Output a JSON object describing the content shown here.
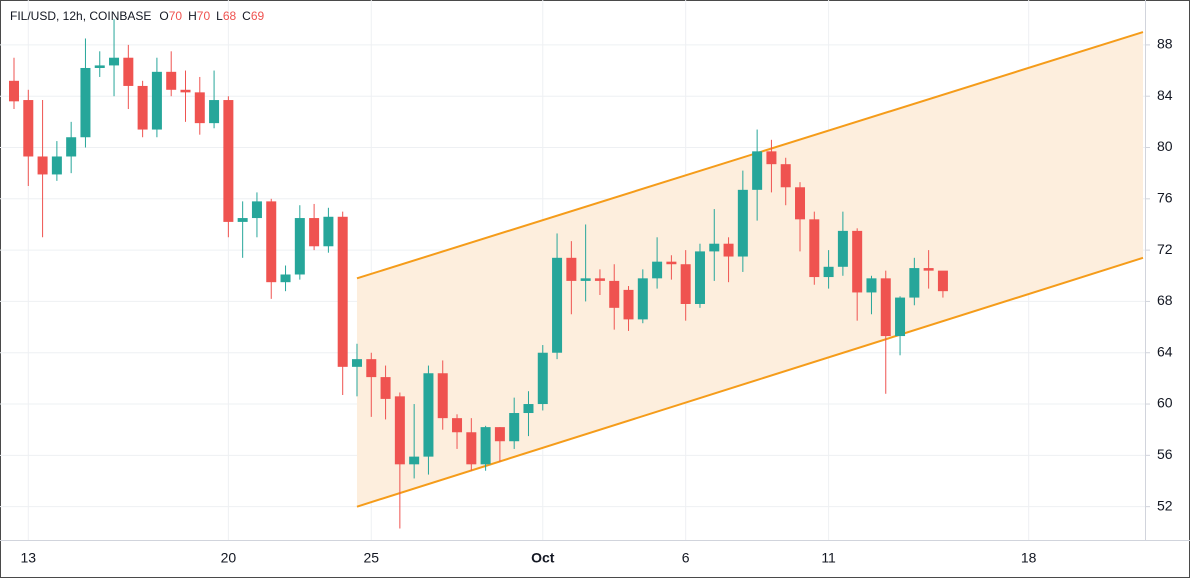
{
  "chart_data": {
    "type": "candlestick",
    "title": "FIL/USD, 12h, COINBASE",
    "ohlc_labels": [
      "O",
      "H",
      "L",
      "C"
    ],
    "ohlc_values": [
      70,
      70,
      68,
      69
    ],
    "categories": [
      null,
      "13",
      null,
      null,
      null,
      null,
      null,
      null,
      null,
      null,
      null,
      null,
      null,
      null,
      null,
      "20",
      null,
      null,
      null,
      null,
      null,
      null,
      null,
      null,
      null,
      "25",
      null,
      null,
      null,
      null,
      null,
      null,
      null,
      null,
      null,
      null,
      null,
      "Oct",
      null,
      null,
      null,
      null,
      null,
      null,
      null,
      null,
      null,
      "6",
      null,
      null,
      null,
      null,
      null,
      null,
      null,
      null,
      null,
      "11",
      null,
      null,
      null,
      null,
      null,
      null,
      null,
      null,
      null,
      null,
      null,
      null,
      null,
      "18",
      null,
      null,
      null,
      null,
      null,
      null,
      null,
      null
    ],
    "series": [
      {
        "name": "open",
        "values": [
          85.2,
          83.7,
          79.3,
          77.9,
          79.3,
          80.8,
          86.2,
          86.4,
          87,
          84.8,
          81.4,
          85.9,
          84.5,
          84.3,
          81.9,
          83.7,
          74.2,
          74.5,
          75.8,
          69.5,
          70.1,
          74.5,
          72.3,
          74.6,
          62.9,
          63.5,
          62.1,
          60.6,
          55.3,
          55.9,
          62.4,
          58.9,
          57.8,
          55.3,
          58.2,
          57.1,
          59.3,
          60,
          64,
          71.4,
          69.6,
          69.8,
          69.6,
          68.9,
          66.6,
          69.8,
          71.1,
          70.9,
          67.8,
          71.9,
          72.5,
          71.5,
          76.7,
          79.7,
          78.7,
          76.9,
          74.4,
          69.9,
          70.7,
          73.5,
          68.7,
          69.8,
          65.3,
          68.3,
          70.6,
          70.4,
          null,
          null,
          null,
          null,
          null,
          null,
          null,
          null,
          null,
          null,
          null,
          null,
          null,
          null
        ]
      },
      {
        "name": "high",
        "values": [
          87,
          84.5,
          83.7,
          80.5,
          82,
          88.5,
          87.5,
          90,
          88,
          85.2,
          87,
          87.5,
          86,
          85.5,
          86,
          84,
          75.8,
          76.5,
          76,
          70.8,
          75.5,
          75.6,
          75.3,
          75,
          64.7,
          64,
          63,
          60.9,
          60,
          63,
          63.4,
          59.2,
          58.9,
          58.3,
          58.2,
          60.5,
          61,
          64.6,
          73.3,
          72.7,
          74,
          70.5,
          70.9,
          69.2,
          70.5,
          73,
          71.6,
          72,
          72.5,
          75.2,
          73,
          78.2,
          81.4,
          80.6,
          79.2,
          77.3,
          75,
          72,
          75,
          73.7,
          70,
          70.4,
          68.4,
          71.4,
          72,
          70.3,
          null,
          null,
          null,
          null,
          null,
          null,
          null,
          null,
          null,
          null,
          null,
          null,
          null,
          null
        ]
      },
      {
        "name": "low",
        "values": [
          83,
          77,
          73,
          77.4,
          78,
          80,
          85.5,
          84,
          83,
          80.8,
          80.8,
          84,
          82,
          81,
          81.5,
          73,
          71.4,
          73,
          68.2,
          68.8,
          69.7,
          72,
          71.8,
          60.7,
          60.6,
          59,
          58.8,
          50.3,
          54.2,
          54.5,
          58,
          56.5,
          54.8,
          54.8,
          55.5,
          56.5,
          57.5,
          59.5,
          63.5,
          67,
          68,
          68.5,
          65.8,
          65.7,
          66.3,
          69,
          69.7,
          66.5,
          67.5,
          69.6,
          69.5,
          70.3,
          74.3,
          76.5,
          75.5,
          71.9,
          69.3,
          69,
          70,
          66.5,
          67,
          60.8,
          63.8,
          67.7,
          69,
          68.3,
          null,
          null,
          null,
          null,
          null,
          null,
          null,
          null,
          null,
          null,
          null,
          null,
          null,
          null
        ]
      },
      {
        "name": "close",
        "values": [
          83.6,
          79.3,
          77.9,
          79.3,
          80.8,
          86.2,
          86.4,
          87,
          84.8,
          81.4,
          85.9,
          84.5,
          84.3,
          81.9,
          83.7,
          74.2,
          74.5,
          75.8,
          69.5,
          70.1,
          74.5,
          72.3,
          74.6,
          62.9,
          63.5,
          62.1,
          60.4,
          55.3,
          55.9,
          62.4,
          58.9,
          57.8,
          55.3,
          58.2,
          57.1,
          59.3,
          60,
          64,
          71.4,
          69.6,
          69.8,
          69.6,
          67.5,
          66.6,
          69.8,
          71.1,
          70.9,
          67.8,
          71.9,
          72.5,
          71.5,
          76.7,
          79.7,
          78.7,
          76.9,
          74.4,
          69.9,
          70.7,
          73.5,
          68.7,
          69.8,
          65.3,
          68.3,
          70.6,
          70.4,
          68.8,
          null,
          null,
          null,
          null,
          null,
          null,
          null,
          null,
          null,
          null,
          null,
          null,
          null,
          null
        ]
      }
    ],
    "up_color": "#26a69a",
    "down_color": "#ef5350",
    "channel": {
      "x": [
        24,
        79
      ],
      "upper": [
        69.8,
        89.0
      ],
      "lower": [
        52,
        71.4
      ],
      "color": "#f59c1a",
      "fill": "#fdeedd"
    },
    "ylim": [
      49.4,
      91.5
    ],
    "yticks": [
      52,
      56,
      60,
      64,
      68,
      72,
      76,
      80,
      84,
      88
    ],
    "grid": true
  }
}
